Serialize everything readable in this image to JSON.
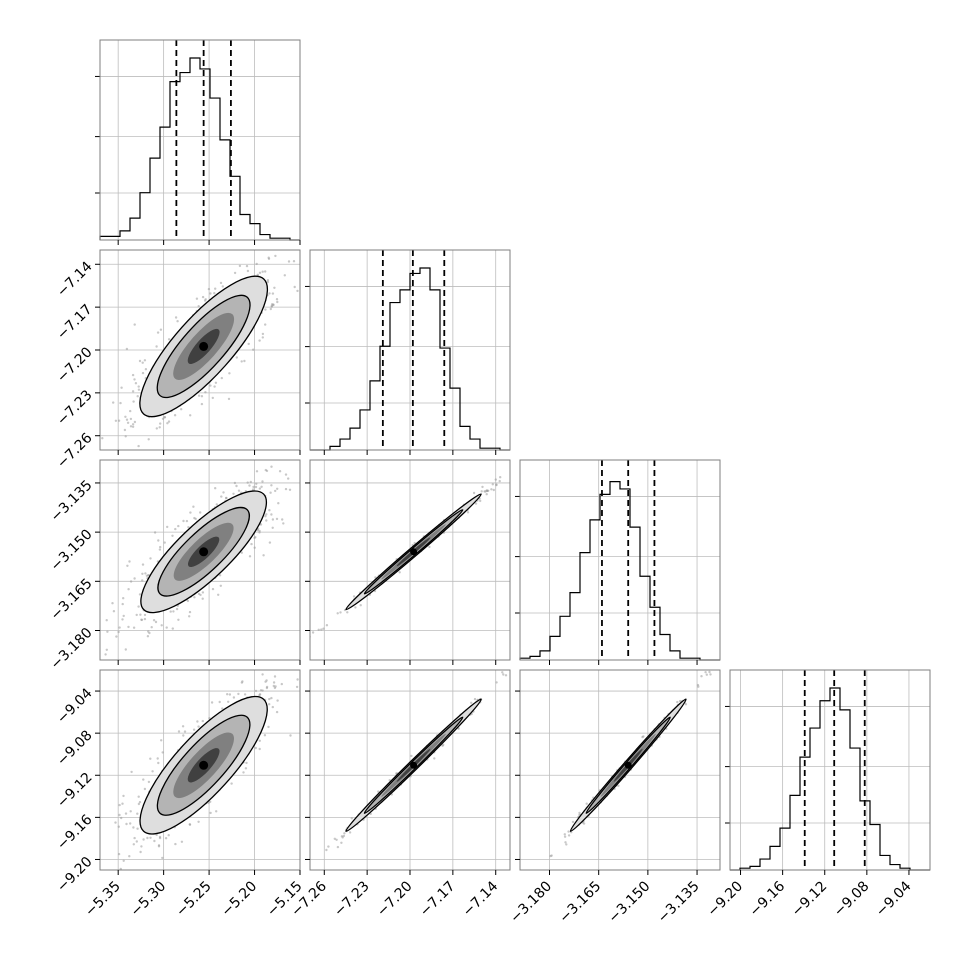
{
  "chart_data": {
    "type": "corner",
    "grid": true,
    "parameters": [
      {
        "range": [
          -5.37,
          -5.15
        ],
        "ticks": [
          -5.35,
          -5.3,
          -5.25,
          -5.2,
          -5.15
        ],
        "tick_labels": [
          "−5.35",
          "−5.30",
          "−5.25",
          "−5.20",
          "−5.15"
        ],
        "histogram": [
          0.02,
          0.02,
          0.05,
          0.12,
          0.26,
          0.45,
          0.62,
          0.87,
          0.92,
          1.0,
          0.94,
          0.78,
          0.55,
          0.35,
          0.14,
          0.09,
          0.03,
          0.01,
          0.01,
          0.0
        ],
        "quantiles": [
          -5.286,
          -5.256,
          -5.226
        ]
      },
      {
        "range": [
          -7.27,
          -7.13
        ],
        "ticks": [
          -7.26,
          -7.23,
          -7.2,
          -7.17,
          -7.14
        ],
        "tick_labels": [
          "−7.26",
          "−7.23",
          "−7.20",
          "−7.17",
          "−7.14"
        ],
        "histogram": [
          0.0,
          0.0,
          0.02,
          0.06,
          0.12,
          0.22,
          0.38,
          0.57,
          0.81,
          0.88,
          0.97,
          1.0,
          0.88,
          0.56,
          0.34,
          0.13,
          0.06,
          0.01,
          0.01,
          0.0
        ],
        "quantiles": [
          -7.219,
          -7.198,
          -7.176
        ]
      },
      {
        "range": [
          -3.189,
          -3.128
        ],
        "ticks": [
          -3.18,
          -3.165,
          -3.15,
          -3.135
        ],
        "tick_labels": [
          "−3.180",
          "−3.165",
          "−3.150",
          "−3.135"
        ],
        "histogram": [
          0.01,
          0.02,
          0.05,
          0.13,
          0.24,
          0.37,
          0.59,
          0.77,
          0.91,
          0.98,
          0.94,
          0.73,
          0.46,
          0.29,
          0.14,
          0.05,
          0.01,
          0.01,
          0.0,
          0.0
        ],
        "quantiles": [
          -3.164,
          -3.156,
          -3.148
        ]
      },
      {
        "range": [
          -9.21,
          -9.02
        ],
        "ticks": [
          -9.2,
          -9.16,
          -9.12,
          -9.08,
          -9.04
        ],
        "tick_labels": [
          "−9.20",
          "−9.16",
          "−9.12",
          "−9.08",
          "−9.04"
        ],
        "histogram": [
          0.0,
          0.01,
          0.02,
          0.06,
          0.13,
          0.23,
          0.41,
          0.62,
          0.78,
          0.93,
          1.0,
          0.88,
          0.67,
          0.38,
          0.25,
          0.08,
          0.03,
          0.01,
          0.0,
          0.0
        ],
        "quantiles": [
          -9.139,
          -9.111,
          -9.082
        ]
      }
    ]
  }
}
